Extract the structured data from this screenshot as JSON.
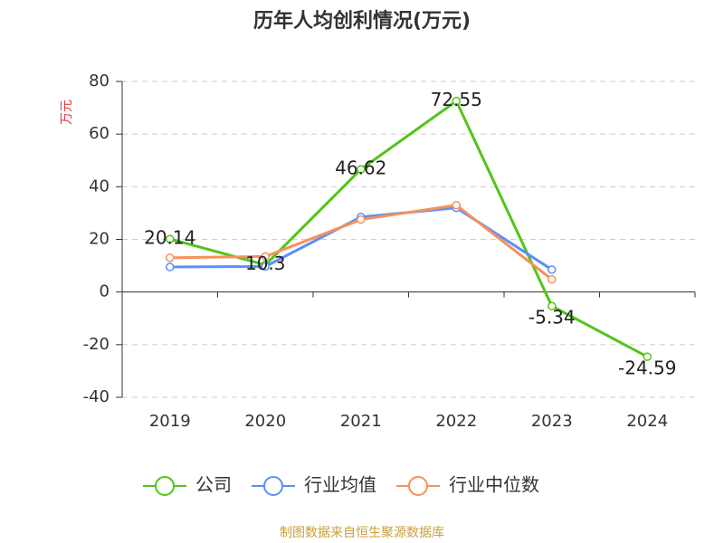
{
  "chart_data": {
    "type": "line",
    "title": "历年人均创利情况(万元)",
    "ylabel": "万元",
    "source": "制图数据来自恒生聚源数据库",
    "categories": [
      "2019",
      "2020",
      "2021",
      "2022",
      "2023",
      "2024"
    ],
    "series": [
      {
        "name": "公司",
        "color": "#52c41a",
        "values": [
          20.14,
          10.3,
          46.62,
          72.55,
          -5.34,
          -24.59
        ],
        "show_labels": true
      },
      {
        "name": "行业均值",
        "color": "#5b8ff9",
        "values": [
          9.5,
          9.7,
          28.5,
          32,
          8.5,
          null
        ]
      },
      {
        "name": "行业中位数",
        "color": "#f6905e",
        "values": [
          13,
          13.5,
          27.5,
          33,
          4.8,
          null
        ]
      }
    ],
    "ylim": [
      -40,
      80
    ],
    "yticks": [
      -40,
      -20,
      0,
      20,
      40,
      60,
      80
    ],
    "grid": true
  }
}
